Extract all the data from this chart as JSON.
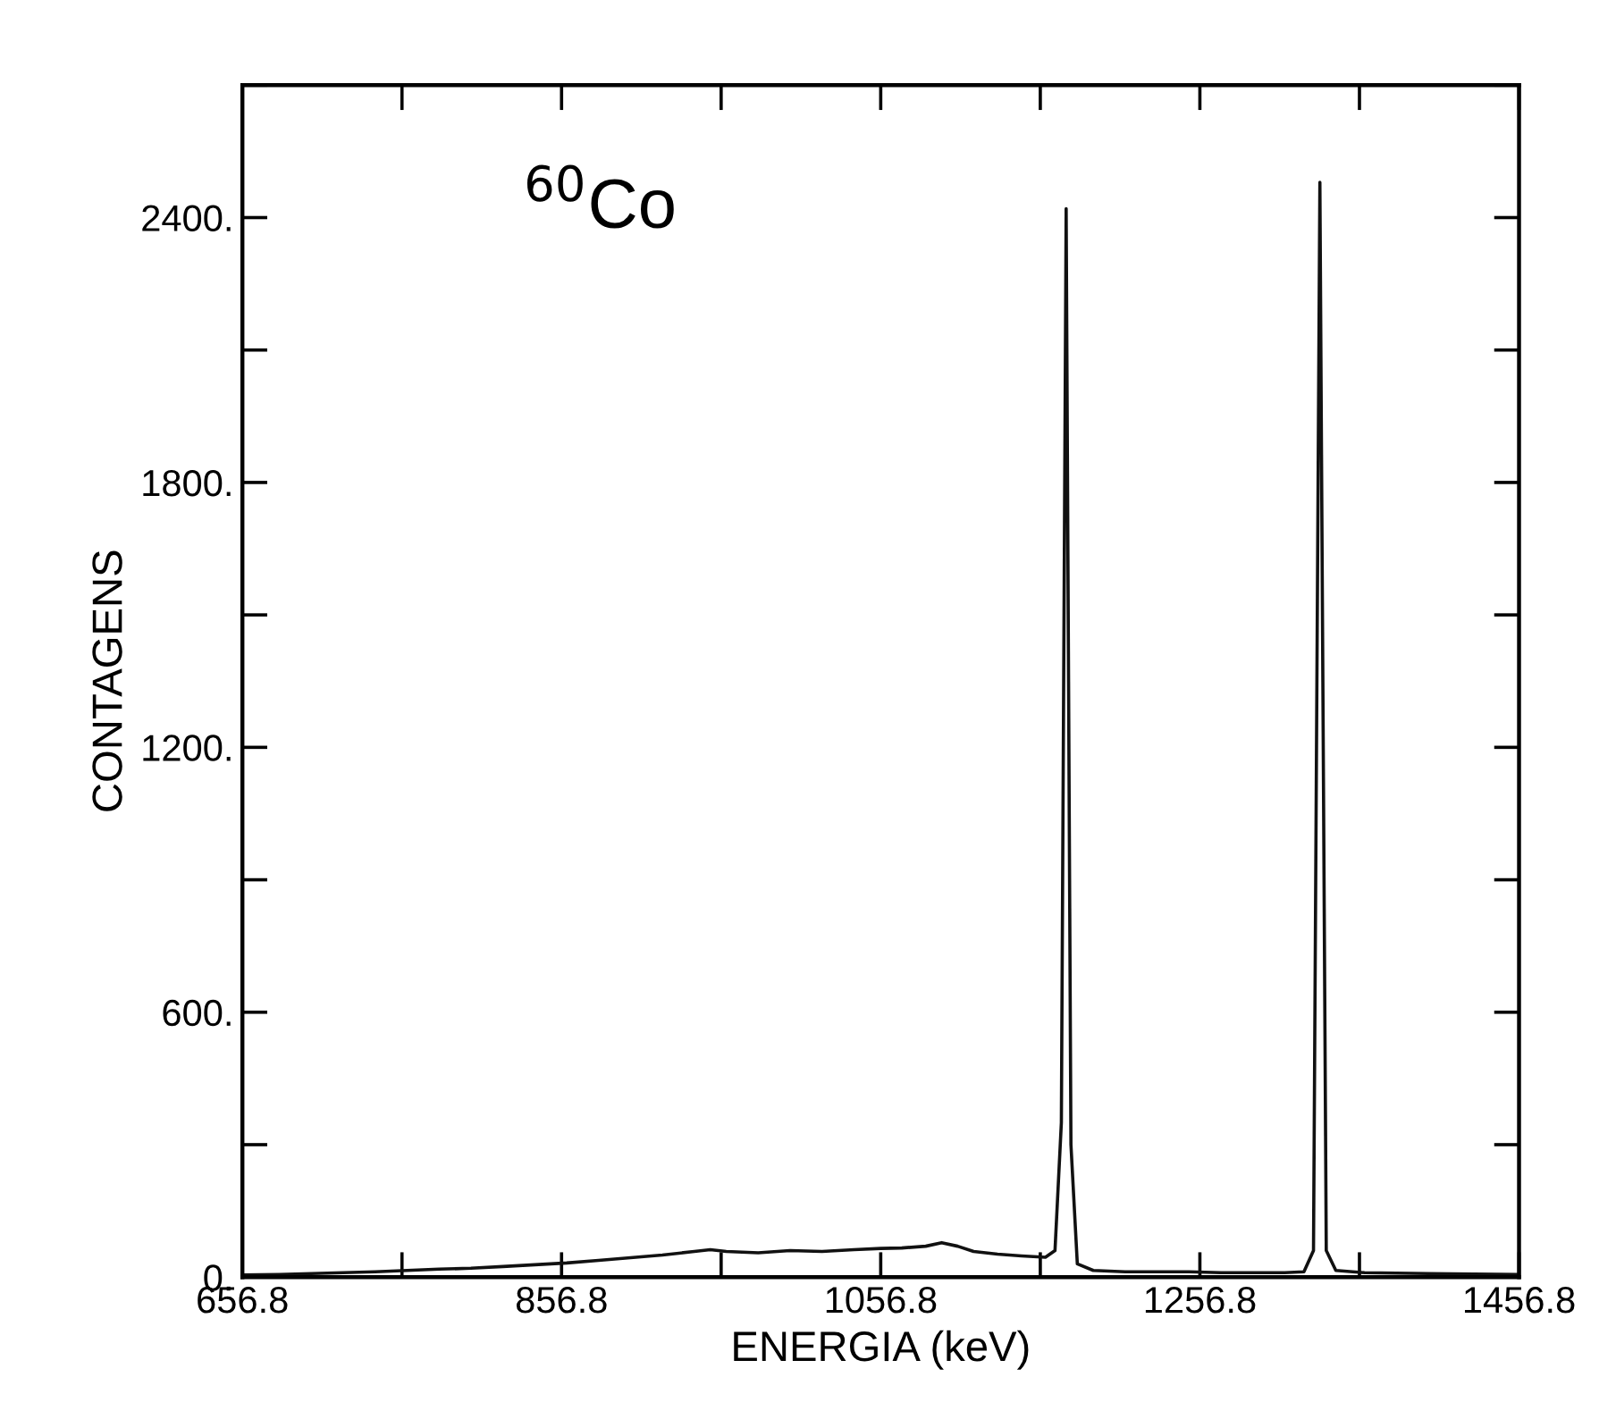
{
  "chart_data": {
    "type": "line",
    "xlabel": "ENERGIA (keV)",
    "ylabel": "CONTAGENS",
    "annotations": [
      "$^{60}$Co"
    ],
    "series": [
      {
        "color": "#111111",
        "x": [
          656.8,
          680,
          700,
          720,
          740,
          760,
          780,
          800,
          820,
          840,
          860,
          880,
          900,
          920,
          940,
          950,
          960,
          980,
          1000,
          1020,
          1040,
          1056.8,
          1070,
          1085,
          1095,
          1105,
          1115,
          1130,
          1145,
          1160,
          1166,
          1170,
          1173,
          1176,
          1180,
          1190,
          1210,
          1230,
          1250,
          1270,
          1290,
          1310,
          1322,
          1328,
          1332,
          1336,
          1342,
          1360,
          1400,
          1456.8
        ],
        "values": [
          5,
          6,
          8,
          10,
          12,
          15,
          18,
          20,
          24,
          28,
          32,
          38,
          44,
          50,
          58,
          62,
          58,
          55,
          60,
          58,
          62,
          65,
          66,
          70,
          78,
          70,
          58,
          52,
          48,
          45,
          60,
          350,
          2420,
          300,
          30,
          15,
          12,
          12,
          12,
          10,
          10,
          10,
          12,
          60,
          2480,
          60,
          15,
          10,
          8,
          6
        ]
      }
    ],
    "xlim": [
      656.8,
      1456.8
    ],
    "ylim": [
      0,
      2700
    ],
    "xticks": [
      656.8,
      {
        "value": 756.8,
        "label": null
      },
      856.8,
      {
        "value": 956.8,
        "label": null
      },
      1056.8,
      {
        "value": 1156.8,
        "label": null
      },
      1256.8,
      {
        "value": 1356.8,
        "label": null
      },
      1456.8
    ],
    "yticks": [
      {
        "value": 0,
        "label": "0."
      },
      {
        "value": 300,
        "label": null
      },
      {
        "value": 600,
        "label": "600."
      },
      {
        "value": 900,
        "label": null
      },
      {
        "value": 1200,
        "label": "1200."
      },
      {
        "value": 1500,
        "label": null
      },
      {
        "value": 1800,
        "label": "1800."
      },
      {
        "value": 2100,
        "label": null
      },
      {
        "value": 2400,
        "label": "2400."
      },
      {
        "value": 2700,
        "label": null
      }
    ],
    "grid": false,
    "legend": false,
    "marker": "none",
    "line_style": "solid"
  }
}
